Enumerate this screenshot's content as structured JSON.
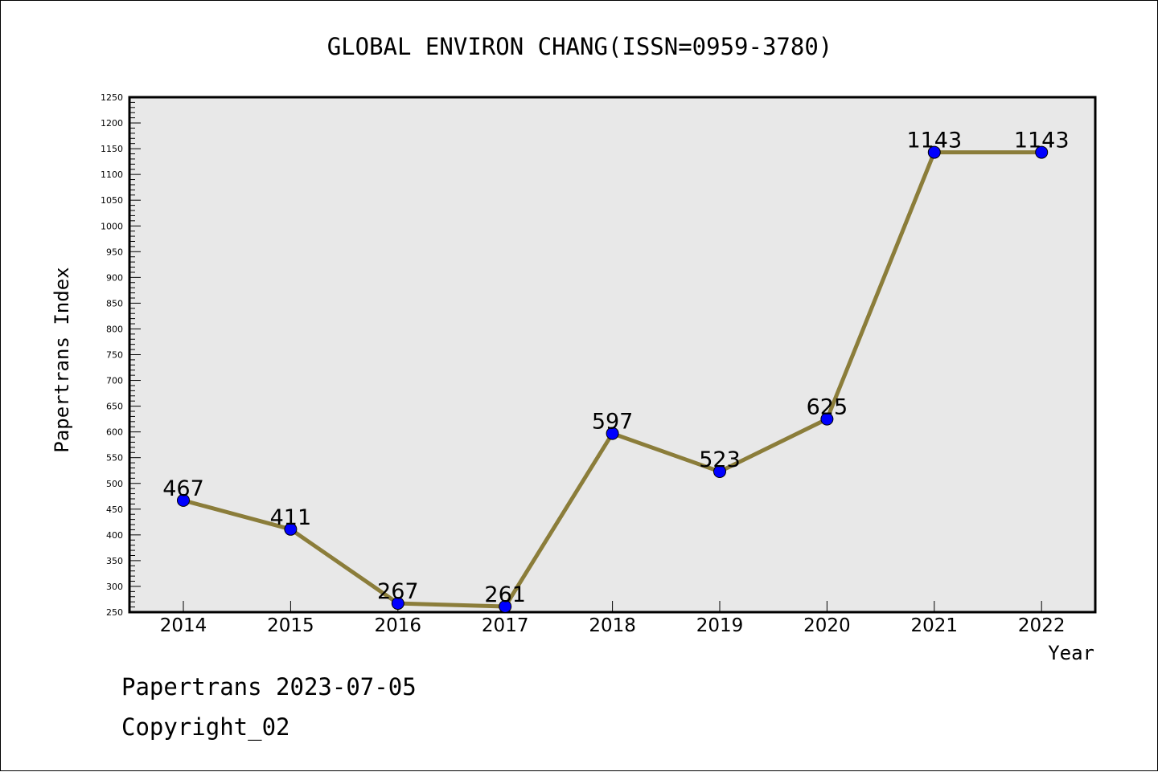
{
  "chart_data": {
    "type": "line",
    "title": "GLOBAL ENVIRON CHANG(ISSN=0959-3780)",
    "xlabel": "Year",
    "ylabel": "Papertrans Index",
    "categories": [
      "2014",
      "2015",
      "2016",
      "2017",
      "2018",
      "2019",
      "2020",
      "2021",
      "2022"
    ],
    "values": [
      467,
      411,
      267,
      261,
      597,
      523,
      625,
      1143,
      1143
    ],
    "data_labels": [
      "467",
      "411",
      "267",
      "261",
      "597",
      "523",
      "625",
      "1143",
      "1143"
    ],
    "ylim": [
      250,
      1250
    ],
    "y_ticks": [
      "250",
      "300",
      "350",
      "400",
      "450",
      "500",
      "550",
      "600",
      "650",
      "700",
      "750",
      "800",
      "850",
      "900",
      "950",
      "1000",
      "1050",
      "1100",
      "1150",
      "1200",
      "1250"
    ],
    "grid": false,
    "line_color": "#8b7d3a",
    "marker_color": "#0000ff",
    "plot_background": "#e8e8e8"
  },
  "footer": {
    "date_line": "Papertrans 2023-07-05",
    "copyright_line": "Copyright_02"
  }
}
